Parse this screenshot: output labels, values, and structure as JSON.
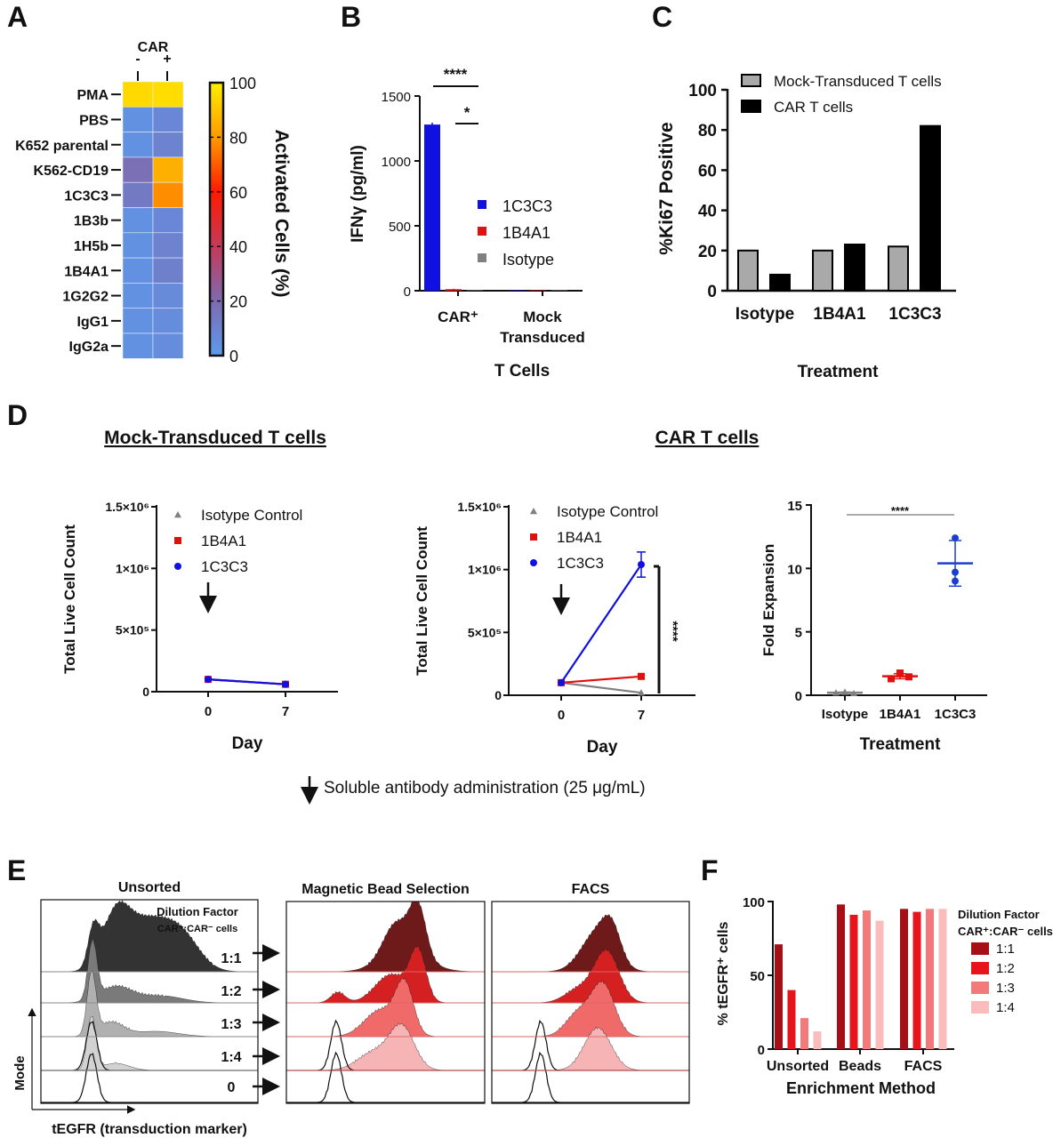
{
  "figure": {
    "panel_labels": [
      "A",
      "B",
      "C",
      "D",
      "E",
      "F"
    ],
    "footnote": "Soluble antibody administration (25 μg/mL)",
    "d_titles": [
      "Mock-Transduced T cells",
      "CAR T cells"
    ]
  },
  "chart_data": [
    {
      "panel": "A",
      "type": "heatmap",
      "columns_title": "CAR",
      "columns": [
        "-",
        "+"
      ],
      "rows": [
        "PMA",
        "PBS",
        "K652 parental",
        "K562-CD19",
        "1C3C3",
        "1B3b",
        "1H5b",
        "1B4A1",
        "1G2G2",
        "IgG1",
        "IgG2a"
      ],
      "values": [
        [
          95,
          96
        ],
        [
          4,
          8
        ],
        [
          4,
          10
        ],
        [
          18,
          85
        ],
        [
          14,
          78
        ],
        [
          4,
          8
        ],
        [
          4,
          10
        ],
        [
          4,
          11
        ],
        [
          4,
          7
        ],
        [
          4,
          6
        ],
        [
          4,
          6
        ]
      ],
      "colorbar": {
        "title": "Activated Cells (%)",
        "range": [
          0,
          100
        ],
        "ticks": [
          "0",
          "20",
          "40",
          "60",
          "80",
          "100"
        ],
        "colors": [
          "#5b9bef",
          "#7e6ab0",
          "#c43a5a",
          "#ff1a00",
          "#ff9a00",
          "#ffee00"
        ]
      }
    },
    {
      "panel": "B",
      "type": "bar",
      "category_lines": [
        [
          "CAR⁺"
        ],
        [
          "Mock",
          "Transduced"
        ]
      ],
      "series": [
        {
          "name": "1C3C3",
          "values": [
            1280,
            0
          ],
          "error": [
            15,
            0
          ],
          "color": "#1010e0"
        },
        {
          "name": "1B4A1",
          "values": [
            12,
            0
          ],
          "error": [
            3,
            0
          ],
          "color": "#e01010"
        },
        {
          "name": "Isotype",
          "values": [
            2,
            0
          ],
          "error": [
            0,
            0
          ],
          "color": "#808080"
        }
      ],
      "ylabel": "IFNγ (pg/ml)",
      "xlabel": "T Cells",
      "ylim": [
        0,
        1500
      ],
      "yticks": [
        "0",
        "500",
        "1000",
        "1500"
      ],
      "significance": [
        "****",
        "*"
      ]
    },
    {
      "panel": "C",
      "type": "bar",
      "categories": [
        "Isotype",
        "1B4A1",
        "1C3C3"
      ],
      "series": [
        {
          "name": "Mock-Transduced T cells",
          "values": [
            20,
            20,
            22
          ],
          "color": "#a9a9a9"
        },
        {
          "name": "CAR T cells",
          "values": [
            8,
            23,
            82
          ],
          "color": "#000000"
        }
      ],
      "ylabel": "%Ki67 Positive",
      "xlabel": "Treatment",
      "ylim": [
        0,
        100
      ],
      "yticks": [
        "0",
        "20",
        "40",
        "60",
        "80",
        "100"
      ]
    },
    {
      "panel": "D-mock",
      "type": "line",
      "x": [
        0,
        7
      ],
      "xticks": [
        "0",
        "7"
      ],
      "xlabel": "Day",
      "ylabel": "Total Live Cell Count",
      "ylim": [
        0,
        1500000
      ],
      "yticks": [
        "0",
        "5×10⁵",
        "1×10⁶",
        "1.5×10⁶"
      ],
      "series": [
        {
          "name": "Isotype Control",
          "values": [
            100000,
            60000
          ],
          "color": "#808080",
          "marker": "triangle"
        },
        {
          "name": "1B4A1",
          "values": [
            100000,
            60000
          ],
          "color": "#e01010",
          "marker": "square"
        },
        {
          "name": "1C3C3",
          "values": [
            100000,
            60000
          ],
          "color": "#1010e0",
          "marker": "circle"
        }
      ]
    },
    {
      "panel": "D-car",
      "type": "line",
      "x": [
        0,
        7
      ],
      "xticks": [
        "0",
        "7"
      ],
      "xlabel": "Day",
      "ylabel": "Total Live Cell Count",
      "ylim": [
        0,
        1500000
      ],
      "yticks": [
        "0",
        "5×10⁵",
        "1×10⁶",
        "1.5×10⁶"
      ],
      "series": [
        {
          "name": "Isotype Control",
          "values": [
            100000,
            20000
          ],
          "error": [
            0,
            0
          ],
          "color": "#808080",
          "marker": "triangle"
        },
        {
          "name": "1B4A1",
          "values": [
            100000,
            150000
          ],
          "error": [
            0,
            0
          ],
          "color": "#e01010",
          "marker": "square"
        },
        {
          "name": "1C3C3",
          "values": [
            100000,
            1040000
          ],
          "error": [
            0,
            100000
          ],
          "color": "#1010e0",
          "marker": "circle"
        }
      ],
      "significance": "****"
    },
    {
      "panel": "D-fold",
      "type": "scatter",
      "categories": [
        "Isotype",
        "1B4A1",
        "1C3C3"
      ],
      "points": [
        [
          0.2,
          0.25,
          0.15
        ],
        [
          1.3,
          1.75,
          1.45
        ],
        [
          12.4,
          9.7,
          9.0
        ]
      ],
      "mean": [
        0.2,
        1.5,
        10.4
      ],
      "sd": [
        0.05,
        0.2,
        1.8
      ],
      "colors": [
        "#808080",
        "#e01010",
        "#1a3fd0"
      ],
      "ylabel": "Fold Expansion",
      "xlabel": "Treatment",
      "ylim": [
        0,
        15
      ],
      "yticks": [
        "0",
        "5",
        "10",
        "15"
      ],
      "significance": "****"
    },
    {
      "panel": "E",
      "type": "histogram",
      "groups": [
        "Unsorted",
        "Magnetic Bead Selection",
        "FACS"
      ],
      "lanes": [
        "1:1",
        "1:2",
        "1:3",
        "1:4",
        "0"
      ],
      "legend_title": [
        "Dilution Factor",
        "CAR⁺:CAR⁻ cells"
      ],
      "xlabel": "tEGFR (transduction marker)",
      "ylabel": "Mode",
      "gray_colors": [
        "#333333",
        "#7a7a7a",
        "#b0b0b0",
        "#d2d2d2"
      ],
      "red_colors": [
        "#6e1a1a",
        "#d42020",
        "#f06a6a",
        "#f7b4b4"
      ]
    },
    {
      "panel": "F",
      "type": "bar",
      "categories": [
        "Unsorted",
        "Beads",
        "FACS"
      ],
      "series": [
        {
          "name": "1:1",
          "values": [
            71,
            98,
            95
          ],
          "color": "#a50f15"
        },
        {
          "name": "1:2",
          "values": [
            40,
            91,
            93
          ],
          "color": "#e8141c"
        },
        {
          "name": "1:3",
          "values": [
            21,
            94,
            95
          ],
          "color": "#f37a7a"
        },
        {
          "name": "1:4",
          "values": [
            12,
            87,
            95
          ],
          "color": "#fbbcbc"
        }
      ],
      "legend_title": [
        "Dilution Factor",
        "CAR⁺:CAR⁻ cells"
      ],
      "ylabel": "% tEGFR⁺ cells",
      "xlabel": "Enrichment Method",
      "ylim": [
        0,
        100
      ],
      "yticks": [
        "0",
        "50",
        "100"
      ]
    }
  ]
}
